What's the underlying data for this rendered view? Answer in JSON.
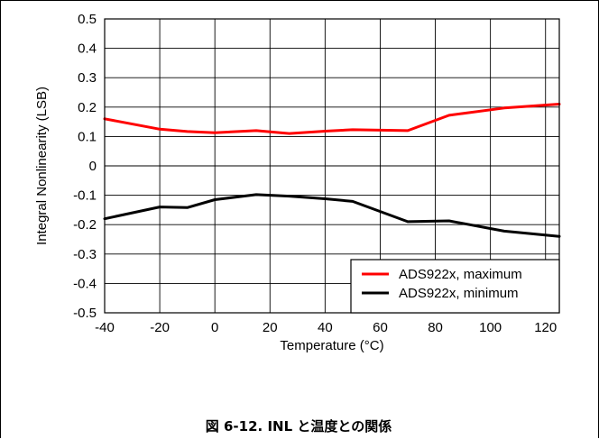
{
  "caption": "図 6-12. INL と温度との関係",
  "chart_data": {
    "type": "line",
    "xlabel": "Temperature (°C)",
    "ylabel": "Integral Nonlinearity (LSB)",
    "xlim": [
      -40,
      125
    ],
    "ylim": [
      -0.5,
      0.5
    ],
    "xticks": [
      -40,
      -20,
      0,
      20,
      40,
      60,
      80,
      100,
      120
    ],
    "xtick_labels": [
      "-40",
      "-20",
      "0",
      "20",
      "40",
      "60",
      "80",
      "100",
      "120"
    ],
    "yticks": [
      0.5,
      0.4,
      0.3,
      0.2,
      0.1,
      0,
      -0.1,
      -0.2,
      -0.3,
      -0.4,
      -0.5
    ],
    "ytick_labels": [
      "0.5",
      "0.4",
      "0.3",
      "0.2",
      "0.1",
      "0",
      "-0.1",
      "-0.2",
      "-0.3",
      "-0.4",
      "-0.5"
    ],
    "grid": true,
    "legend_position": "bottom-right",
    "series": [
      {
        "name": "ADS922x, maximum",
        "color": "#ff0000",
        "x": [
          -40,
          -20,
          -10,
          0,
          15,
          27,
          40,
          50,
          70,
          85,
          105,
          125
        ],
        "y": [
          0.16,
          0.125,
          0.117,
          0.113,
          0.12,
          0.11,
          0.118,
          0.123,
          0.12,
          0.172,
          0.197,
          0.21
        ]
      },
      {
        "name": "ADS922x, minimum",
        "color": "#000000",
        "x": [
          -40,
          -20,
          -10,
          0,
          15,
          27,
          40,
          50,
          70,
          85,
          105,
          125
        ],
        "y": [
          -0.18,
          -0.14,
          -0.142,
          -0.115,
          -0.098,
          -0.103,
          -0.112,
          -0.121,
          -0.19,
          -0.187,
          -0.222,
          -0.24
        ]
      }
    ]
  }
}
